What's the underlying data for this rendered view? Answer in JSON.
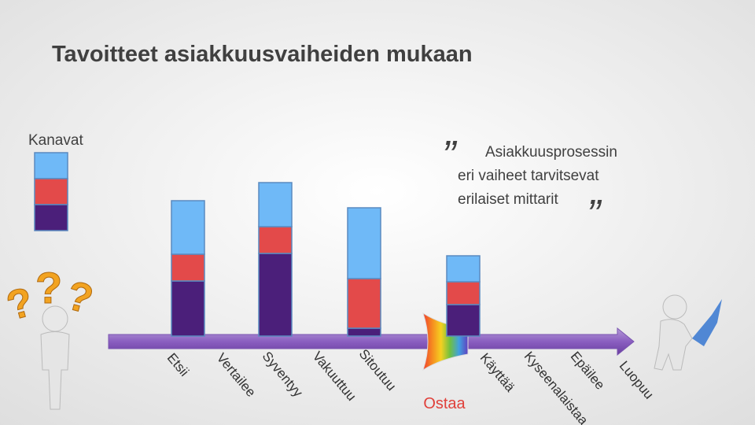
{
  "chart_data": {
    "type": "stacked_bar",
    "title": "Tavoitteet asiakkuusvaiheiden mukaan",
    "legend_title": "Kanavat",
    "quote": [
      "Asiakkuusprosessin",
      "eri vaiheet tarvitsevat",
      "erilaiset mittarit"
    ],
    "stages": [
      "Etsii",
      "Vertailee",
      "Syventyy",
      "Vakuuttuu",
      "Sitoutuu",
      "Käyttää",
      "Kyseenalaistaa",
      "Epäilee",
      "Luopuu"
    ],
    "purchase_label": "Ostaa",
    "series": [
      {
        "color": "#4b1f7a",
        "values": [
          70,
          105,
          10,
          40
        ]
      },
      {
        "color": "#e34a4a",
        "values": [
          34,
          34,
          63,
          29
        ]
      },
      {
        "color": "#6fb9f7",
        "values": [
          68,
          56,
          90,
          33
        ]
      }
    ],
    "ylim": [
      0,
      200
    ]
  }
}
